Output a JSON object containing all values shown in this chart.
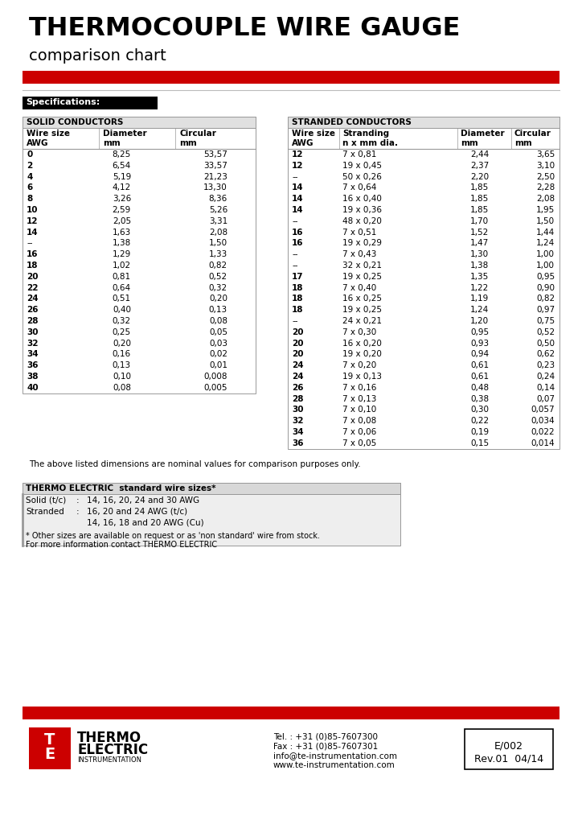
{
  "title_main": "THERMOCOUPLE WIRE GAUGE",
  "title_sub": "comparison chart",
  "red_bar_color": "#cc0000",
  "specs_label": "Specifications:",
  "solid_header": "SOLID CONDUCTORS",
  "stranded_header": "STRANDED CONDUCTORS",
  "solid_data": [
    [
      "0",
      "8,25",
      "53,57"
    ],
    [
      "2",
      "6,54",
      "33,57"
    ],
    [
      "4",
      "5,19",
      "21,23"
    ],
    [
      "6",
      "4,12",
      "13,30"
    ],
    [
      "8",
      "3,26",
      "8,36"
    ],
    [
      "10",
      "2,59",
      "5,26"
    ],
    [
      "12",
      "2,05",
      "3,31"
    ],
    [
      "14",
      "1,63",
      "2,08"
    ],
    [
      "--",
      "1,38",
      "1,50"
    ],
    [
      "16",
      "1,29",
      "1,33"
    ],
    [
      "18",
      "1,02",
      "0,82"
    ],
    [
      "20",
      "0,81",
      "0,52"
    ],
    [
      "22",
      "0,64",
      "0,32"
    ],
    [
      "24",
      "0,51",
      "0,20"
    ],
    [
      "26",
      "0,40",
      "0,13"
    ],
    [
      "28",
      "0,32",
      "0,08"
    ],
    [
      "30",
      "0,25",
      "0,05"
    ],
    [
      "32",
      "0,20",
      "0,03"
    ],
    [
      "34",
      "0,16",
      "0,02"
    ],
    [
      "36",
      "0,13",
      "0,01"
    ],
    [
      "38",
      "0,10",
      "0,008"
    ],
    [
      "40",
      "0,08",
      "0,005"
    ]
  ],
  "stranded_data": [
    [
      "12",
      "7 x 0,81",
      "2,44",
      "3,65"
    ],
    [
      "12",
      "19 x 0,45",
      "2,37",
      "3,10"
    ],
    [
      "--",
      "50 x 0,26",
      "2,20",
      "2,50"
    ],
    [
      "14",
      "7 x 0,64",
      "1,85",
      "2,28"
    ],
    [
      "14",
      "16 x 0,40",
      "1,85",
      "2,08"
    ],
    [
      "14",
      "19 x 0,36",
      "1,85",
      "1,95"
    ],
    [
      "--",
      "48 x 0,20",
      "1,70",
      "1,50"
    ],
    [
      "16",
      "7 x 0,51",
      "1,52",
      "1,44"
    ],
    [
      "16",
      "19 x 0,29",
      "1,47",
      "1,24"
    ],
    [
      "--",
      "7 x 0,43",
      "1,30",
      "1,00"
    ],
    [
      "--",
      "32 x 0,21",
      "1,38",
      "1,00"
    ],
    [
      "17",
      "19 x 0,25",
      "1,35",
      "0,95"
    ],
    [
      "18",
      "7 x 0,40",
      "1,22",
      "0,90"
    ],
    [
      "18",
      "16 x 0,25",
      "1,19",
      "0,82"
    ],
    [
      "18",
      "19 x 0,25",
      "1,24",
      "0,97"
    ],
    [
      "--",
      "24 x 0,21",
      "1,20",
      "0,75"
    ],
    [
      "20",
      "7 x 0,30",
      "0,95",
      "0,52"
    ],
    [
      "20",
      "16 x 0,20",
      "0,93",
      "0,50"
    ],
    [
      "20",
      "19 x 0,20",
      "0,94",
      "0,62"
    ],
    [
      "24",
      "7 x 0,20",
      "0,61",
      "0,23"
    ],
    [
      "24",
      "19 x 0,13",
      "0,61",
      "0,24"
    ],
    [
      "26",
      "7 x 0,16",
      "0,48",
      "0,14"
    ],
    [
      "28",
      "7 x 0,13",
      "0,38",
      "0,07"
    ],
    [
      "30",
      "7 x 0,10",
      "0,30",
      "0,057"
    ],
    [
      "32",
      "7 x 0,08",
      "0,22",
      "0,034"
    ],
    [
      "34",
      "7 x 0,06",
      "0,19",
      "0,022"
    ],
    [
      "36",
      "7 x 0,05",
      "0,15",
      "0,014"
    ]
  ],
  "note": "The above listed dimensions are nominal values for comparison purposes only.",
  "std_header": "THERMO ELECTRIC  standard wire sizes*",
  "std_solid_label": "Solid (t/c)",
  "std_solid_val": "14, 16, 20, 24 and 30 AWG",
  "std_strand_label": "Stranded",
  "std_strand_val1": "16, 20 and 24 AWG (t/c)",
  "std_strand_val2": "14, 16, 18 and 20 AWG (Cu)",
  "std_note_line1": "* Other sizes are available on request or as 'non standard' wire from stock.",
  "std_note_line2": "For more information contact THERMO ELECTRIC",
  "footer_tel": "Tel. : +31 (0)85-7607300",
  "footer_fax": "Fax : +31 (0)85-7607301",
  "footer_email": "info@te-instrumentation.com",
  "footer_web": "www.te-instrumentation.com",
  "footer_code": "E/002",
  "footer_rev": "Rev.01  04/14",
  "bg_color": "#ffffff",
  "table_hdr_bg": "#e0e0e0",
  "table_border": "#999999",
  "std_box_bg": "#eeeeee",
  "red_color": "#cc0000"
}
